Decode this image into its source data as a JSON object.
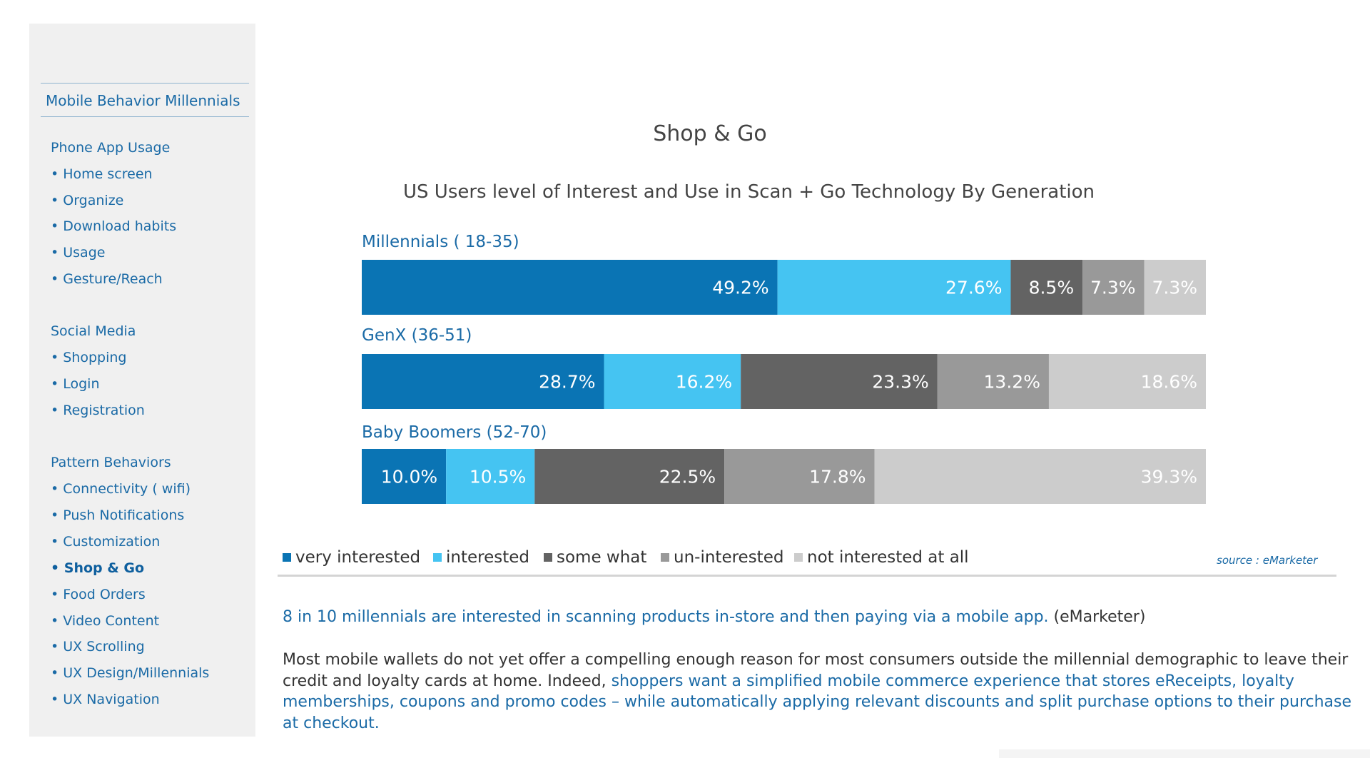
{
  "sidebar": {
    "title": "Mobile Behavior Millennials",
    "sections": [
      {
        "label": "Phone App Usage",
        "items": [
          "• Home screen",
          "• Organize",
          "• Download habits",
          "• Usage",
          "• Gesture/Reach"
        ]
      },
      {
        "label": "Social Media",
        "items": [
          "• Shopping",
          "• Login",
          "• Registration"
        ]
      },
      {
        "label": "Pattern Behaviors",
        "items": [
          "• Connectivity ( wifi)",
          "• Push Notifications",
          "• Customization",
          "• Shop & Go",
          "• Food Orders",
          "• Video Content",
          "• UX Scrolling",
          "• UX Design/Millennials",
          "• UX Navigation"
        ]
      }
    ],
    "active_item": "• Shop & Go"
  },
  "chart_data": {
    "type": "bar",
    "orientation": "horizontal",
    "stacked": true,
    "normalized": true,
    "title": "Shop & Go",
    "subtitle": "US Users level of Interest and Use in Scan + Go Technology By Generation",
    "categories": [
      "Millennials ( 18-35)",
      "GenX (36-51)",
      "Baby Boomers (52-70)"
    ],
    "series": [
      {
        "name": "very interested",
        "color": "#0a74b4",
        "values": [
          49.2,
          28.7,
          10.0
        ],
        "labels": [
          "49.2%",
          "28.7%",
          "10.0%"
        ]
      },
      {
        "name": "interested",
        "color": "#45c4f2",
        "values": [
          27.6,
          16.2,
          10.5
        ],
        "labels": [
          "27.6%",
          "16.2%",
          "10.5%"
        ]
      },
      {
        "name": "some what",
        "color": "#636363",
        "values": [
          8.5,
          23.3,
          22.5
        ],
        "labels": [
          "8.5%",
          "23.3%",
          "22.5%"
        ]
      },
      {
        "name": "un-interested",
        "color": "#999999",
        "values": [
          7.3,
          13.2,
          17.8
        ],
        "labels": [
          "7.3%",
          "13.2%",
          "17.8%"
        ]
      },
      {
        "name": "not interested at all",
        "color": "#cccccc",
        "values": [
          7.3,
          18.6,
          39.3
        ],
        "labels": [
          "7.3%",
          "18.6%",
          "39.3%"
        ]
      }
    ],
    "legend_position": "bottom-left",
    "grid": false
  },
  "source": "source : eMarketer",
  "paragraph1": {
    "highlight": "8 in 10 millennials are interested in scanning products in-store and then paying via a mobile app.",
    "tail": " (eMarketer)"
  },
  "paragraph2": {
    "lead": "Most mobile wallets do not yet offer a compelling enough reason for most consumers outside the millennial demographic to leave their credit and loyalty cards at home. Indeed, ",
    "highlight": "shoppers want a simplified mobile commerce experience that stores eReceipts, loyalty memberships, coupons and promo codes – while automatically applying relevant discounts and split purchase options to their purchase at checkout."
  }
}
